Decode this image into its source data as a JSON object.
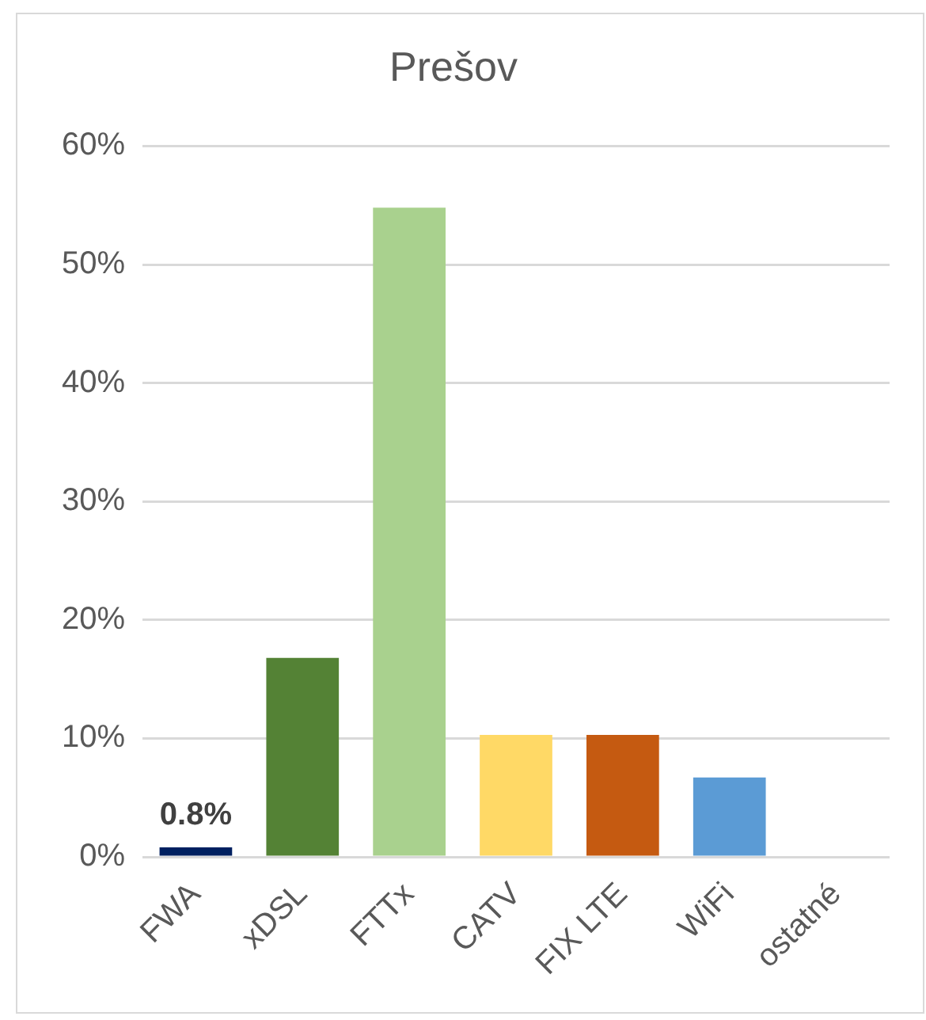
{
  "chart_data": {
    "type": "bar",
    "title": "Prešov",
    "categories": [
      "FWA",
      "xDSL",
      "FTTx",
      "CATV",
      "FIX LTE",
      "WiFi",
      "ostatné"
    ],
    "values": [
      0.8,
      16.8,
      54.8,
      10.3,
      10.3,
      6.7,
      0
    ],
    "colors": [
      "#002060",
      "#548235",
      "#a9d18e",
      "#ffd966",
      "#c55a11",
      "#5b9bd5",
      "#7f7f7f"
    ],
    "ylim": [
      0,
      60
    ],
    "yticks": [
      {
        "value": 0,
        "label": "0%"
      },
      {
        "value": 10,
        "label": "10%"
      },
      {
        "value": 20,
        "label": "20%"
      },
      {
        "value": 30,
        "label": "30%"
      },
      {
        "value": 40,
        "label": "40%"
      },
      {
        "value": 50,
        "label": "50%"
      },
      {
        "value": 60,
        "label": "60%"
      }
    ],
    "grid": "y",
    "value_labels": [
      "0.8%",
      null,
      null,
      null,
      null,
      null,
      null
    ]
  }
}
